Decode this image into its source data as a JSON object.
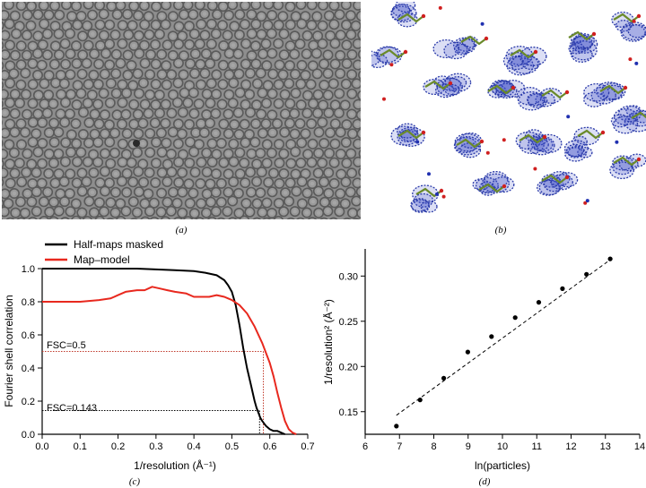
{
  "figure": {
    "panel_labels": [
      "(a)",
      "(b)",
      "(c)",
      "(d)"
    ],
    "panel_a": {
      "content": "micrograph-particle-field"
    },
    "panel_b": {
      "content": "density-map-mesh",
      "colors": {
        "mesh": "#2a3aa8",
        "carbon": "#6a8a2a",
        "oxygen": "#d02020",
        "nitrogen": "#2030b0"
      }
    }
  },
  "chart_data": [
    {
      "type": "line",
      "id": "fsc",
      "xlabel": "1/resolution (Å⁻¹)",
      "ylabel": "Fourier shell correlation",
      "xlim": [
        0.0,
        0.7
      ],
      "ylim": [
        0.0,
        1.0
      ],
      "xticks": [
        "0.0",
        "0.1",
        "0.2",
        "0.3",
        "0.4",
        "0.5",
        "0.6",
        "0.7"
      ],
      "yticks": [
        "0.0",
        "0.2",
        "0.4",
        "0.6",
        "0.8",
        "1.0"
      ],
      "legend": {
        "position": "top-left",
        "entries": [
          "Half-maps masked",
          "Map–model"
        ]
      },
      "colors": {
        "half_maps": "#000000",
        "map_model": "#e8281e",
        "guide_red": "#c0392b",
        "guide_black": "#000000"
      },
      "series": [
        {
          "name": "Half-maps masked",
          "x": [
            0.0,
            0.05,
            0.1,
            0.15,
            0.2,
            0.25,
            0.3,
            0.35,
            0.4,
            0.43,
            0.46,
            0.48,
            0.49,
            0.5,
            0.51,
            0.52,
            0.53,
            0.54,
            0.55,
            0.56,
            0.565,
            0.57,
            0.575,
            0.58,
            0.59,
            0.6,
            0.61,
            0.62,
            0.63,
            0.64
          ],
          "y": [
            1.0,
            1.0,
            1.0,
            1.0,
            1.0,
            1.0,
            0.995,
            0.99,
            0.985,
            0.975,
            0.96,
            0.93,
            0.9,
            0.86,
            0.78,
            0.66,
            0.52,
            0.4,
            0.3,
            0.2,
            0.16,
            0.13,
            0.1,
            0.08,
            0.05,
            0.03,
            0.02,
            0.02,
            0.01,
            0.0
          ]
        },
        {
          "name": "Map–model",
          "x": [
            0.0,
            0.05,
            0.1,
            0.15,
            0.18,
            0.2,
            0.22,
            0.25,
            0.27,
            0.29,
            0.31,
            0.33,
            0.35,
            0.38,
            0.4,
            0.42,
            0.44,
            0.46,
            0.48,
            0.5,
            0.52,
            0.54,
            0.56,
            0.58,
            0.6,
            0.61,
            0.62,
            0.63,
            0.64,
            0.65,
            0.66,
            0.67
          ],
          "y": [
            0.8,
            0.8,
            0.8,
            0.81,
            0.82,
            0.84,
            0.86,
            0.87,
            0.87,
            0.89,
            0.88,
            0.87,
            0.86,
            0.85,
            0.83,
            0.83,
            0.83,
            0.84,
            0.83,
            0.81,
            0.78,
            0.73,
            0.65,
            0.55,
            0.43,
            0.35,
            0.25,
            0.16,
            0.08,
            0.03,
            0.01,
            0.0
          ]
        }
      ],
      "annotations": [
        {
          "text": "FSC=0.5",
          "y": 0.5,
          "x_end": 0.583
        },
        {
          "text": "FSC=0.143",
          "y": 0.143,
          "x_end": 0.573
        }
      ]
    },
    {
      "type": "scatter",
      "id": "resolution-vs-particles",
      "xlabel": "ln(particles)",
      "ylabel": "1/resolution² (Å⁻²)",
      "xlim": [
        6,
        14
      ],
      "ylim": [
        0.125,
        0.33
      ],
      "xticks": [
        "6",
        "7",
        "8",
        "9",
        "10",
        "11",
        "12",
        "13",
        "14"
      ],
      "yticks": [
        "0.15",
        "0.20",
        "0.25",
        "0.30"
      ],
      "points": {
        "x": [
          6.91,
          7.6,
          8.29,
          8.99,
          9.68,
          10.37,
          11.06,
          11.75,
          12.45,
          13.14
        ],
        "y": [
          0.134,
          0.163,
          0.187,
          0.216,
          0.233,
          0.254,
          0.271,
          0.286,
          0.302,
          0.319
        ]
      },
      "fit": {
        "x": [
          6.91,
          13.14
        ],
        "y": [
          0.146,
          0.318
        ],
        "style": "dashed"
      }
    }
  ]
}
